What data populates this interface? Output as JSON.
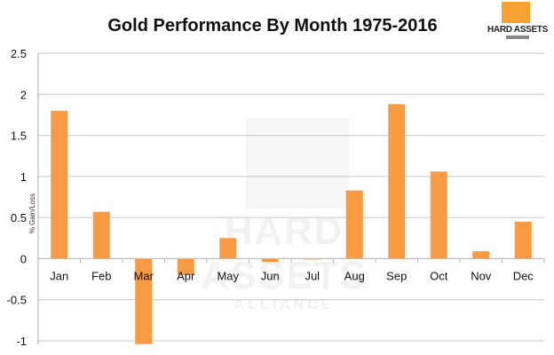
{
  "chart_data": {
    "type": "bar",
    "title": "Gold Performance By Month 1975-2016",
    "ylabel": "% Gain/Loss",
    "xlabel": "",
    "categories": [
      "Jan",
      "Feb",
      "Mar",
      "Apr",
      "May",
      "Jun",
      "Jul",
      "Aug",
      "Sep",
      "Oct",
      "Nov",
      "Dec"
    ],
    "values": [
      1.8,
      0.57,
      -1.04,
      -0.2,
      0.25,
      -0.04,
      -0.01,
      0.83,
      1.88,
      1.06,
      0.09,
      0.45
    ],
    "ylim": [
      -1,
      2.5
    ],
    "yticks": [
      "2.5",
      "2",
      "1.5",
      "1",
      "0.5",
      "0",
      "-0.5",
      "-1"
    ],
    "ytick_values": [
      2.5,
      2,
      1.5,
      1,
      0.5,
      0,
      -0.5,
      -1
    ],
    "grid": true,
    "bar_color": "#f79a43"
  },
  "logo": {
    "text": "HARD ASSETS",
    "color": "#f7a133"
  },
  "watermark": {
    "line1": "HARD ASSETS",
    "line2": "ALLIANCE"
  }
}
